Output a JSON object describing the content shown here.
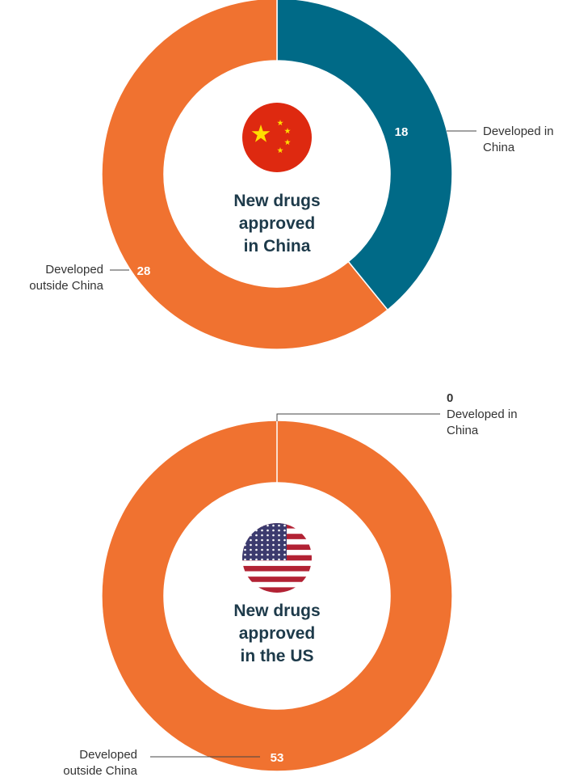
{
  "colors": {
    "china": "#006a87",
    "outside": "#f07230",
    "text": "#333333",
    "title": "#1d3a4a"
  },
  "chart_data": [
    {
      "type": "pie",
      "donut": true,
      "center_title": [
        "New drugs",
        "approved",
        "in China"
      ],
      "center_icon": "china-flag-icon",
      "slices": [
        {
          "label": [
            "Developed in",
            "China"
          ],
          "value": 18,
          "color": "#006a87"
        },
        {
          "label": [
            "Developed",
            "outside China"
          ],
          "value": 28,
          "color": "#f07230"
        }
      ]
    },
    {
      "type": "pie",
      "donut": true,
      "center_title": [
        "New drugs",
        "approved",
        "in the US"
      ],
      "center_icon": "us-flag-icon",
      "slices": [
        {
          "label": [
            "Developed in",
            "China"
          ],
          "value": 0,
          "color": "#006a87"
        },
        {
          "label": [
            "Developed",
            "outside China"
          ],
          "value": 53,
          "color": "#f07230"
        }
      ]
    }
  ]
}
